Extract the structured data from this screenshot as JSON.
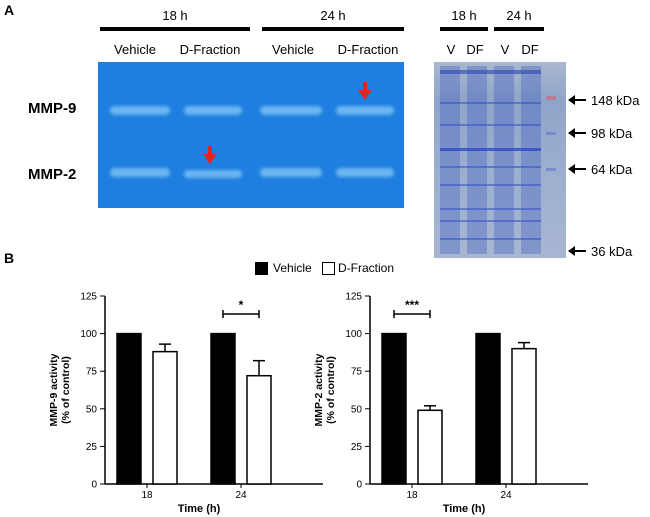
{
  "panel_a": {
    "letter": "A",
    "time_18": "18 h",
    "time_24": "24 h",
    "lanes": [
      "Vehicle",
      "D-Fraction",
      "Vehicle",
      "D-Fraction"
    ],
    "row_labels": [
      "MMP-9",
      "MMP-2"
    ],
    "coomassie_time_18": "18 h",
    "coomassie_time_24": "24 h",
    "coomassie_lanes": [
      "V",
      "DF",
      "V",
      "DF"
    ],
    "markers": [
      "148 kDa",
      "98 kDa",
      "64 kDa",
      "36 kDa"
    ],
    "colors": {
      "gel": "#1f7fe0",
      "arrow": "#e8231c"
    }
  },
  "panel_b": {
    "letter": "B",
    "legend": [
      "Vehicle",
      "D-Fraction"
    ]
  },
  "chart_data": [
    {
      "type": "bar",
      "ylabel": "MMP-9 activity\n(% of control)",
      "xlabel": "Time (h)",
      "categories": [
        "18",
        "24"
      ],
      "ylim": [
        0,
        125
      ],
      "yticks": [
        "0",
        "25",
        "50",
        "75",
        "100",
        "125"
      ],
      "series": [
        {
          "name": "Vehicle",
          "values": [
            100,
            100
          ],
          "errors": [
            0,
            0
          ],
          "color": "#000000"
        },
        {
          "name": "D-Fraction",
          "values": [
            88,
            72
          ],
          "errors": [
            5,
            10
          ],
          "color": "#ffffff"
        }
      ],
      "significance": {
        "category": "24",
        "label": "*",
        "y": 113
      }
    },
    {
      "type": "bar",
      "ylabel": "MMP-2 activity\n(% of control)",
      "xlabel": "Time (h)",
      "categories": [
        "18",
        "24"
      ],
      "ylim": [
        0,
        125
      ],
      "yticks": [
        "0",
        "25",
        "50",
        "75",
        "100",
        "125"
      ],
      "series": [
        {
          "name": "Vehicle",
          "values": [
            100,
            100
          ],
          "errors": [
            0,
            0
          ],
          "color": "#000000"
        },
        {
          "name": "D-Fraction",
          "values": [
            49,
            90
          ],
          "errors": [
            3,
            4
          ],
          "color": "#ffffff"
        }
      ],
      "significance": {
        "category": "18",
        "label": "***",
        "y": 113
      }
    }
  ]
}
